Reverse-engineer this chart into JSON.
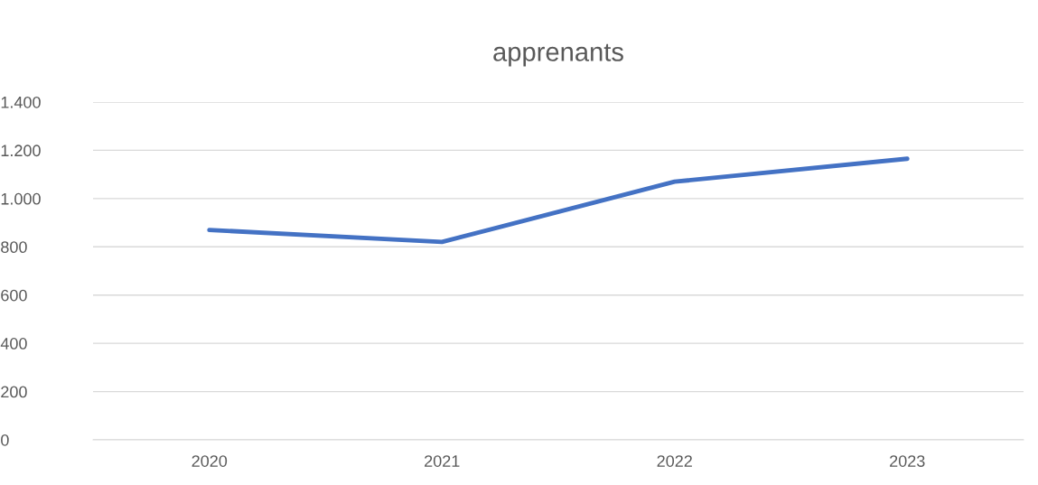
{
  "chart_data": {
    "type": "line",
    "title": "apprenants",
    "categories": [
      "2020",
      "2021",
      "2022",
      "2023"
    ],
    "series": [
      {
        "color": "#4472c4",
        "values": [
          870,
          820,
          1070,
          1165
        ]
      }
    ],
    "ylim": [
      0,
      1400
    ],
    "yticks": [
      0,
      200,
      400,
      600,
      800,
      {
        "value": 1000,
        "label": "1.000"
      },
      {
        "value": 1200,
        "label": "1.200"
      },
      {
        "value": 1400,
        "label": "1.400"
      }
    ],
    "grid": "y",
    "marker": "none",
    "line_style": "solid"
  }
}
